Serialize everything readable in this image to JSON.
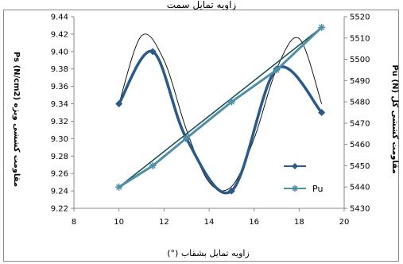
{
  "header_text": "زاویه تمایل سمت ",
  "chart_data": {
    "type": "line",
    "xlabel": "زاویه تمایل بشقاب (°)",
    "ylabel_left": "مقاومت کششی ویژه Ps (N/cm2)",
    "ylabel_right": "مقاومت کششی کل Pu (N)",
    "xlim": [
      8,
      20
    ],
    "xticks": [
      8,
      10,
      12,
      14,
      16,
      18,
      20
    ],
    "ylim_left": [
      9.22,
      9.44
    ],
    "yticks_left": [
      9.22,
      9.24,
      9.26,
      9.28,
      9.3,
      9.32,
      9.34,
      9.36,
      9.38,
      9.4,
      9.42,
      9.44
    ],
    "ylim_right": [
      5430,
      5520
    ],
    "yticks_right": [
      5430,
      5440,
      5450,
      5460,
      5470,
      5480,
      5490,
      5500,
      5510,
      5520
    ],
    "grid": false,
    "legend_position": "right",
    "series": [
      {
        "name": "",
        "axis": "left",
        "marker": "diamond",
        "color": "#2a5a8a",
        "style": "smooth",
        "x": [
          10,
          11.5,
          13,
          15,
          17,
          19
        ],
        "y": [
          9.34,
          9.4,
          9.3,
          9.24,
          9.38,
          9.33
        ]
      },
      {
        "name": "Pu",
        "axis": "right",
        "marker": "star",
        "color": "#4f8fa7",
        "style": "straight",
        "x": [
          10,
          11.5,
          13,
          15,
          17,
          19
        ],
        "y": [
          5440,
          5450,
          5463,
          5480,
          5495,
          5515
        ]
      },
      {
        "name": "",
        "axis": "left",
        "marker": "none",
        "color": "#000000",
        "style": "smooth-thin",
        "x": [
          10,
          11,
          12,
          13,
          14,
          15,
          16,
          17,
          18,
          19
        ],
        "y": [
          9.34,
          9.418,
          9.39,
          9.31,
          9.25,
          9.245,
          9.3,
          9.38,
          9.415,
          9.34
        ]
      },
      {
        "name": "",
        "axis": "right",
        "marker": "none",
        "color": "#1c5250",
        "style": "straight",
        "x": [
          10,
          19
        ],
        "y": [
          5440,
          5515
        ]
      }
    ]
  }
}
